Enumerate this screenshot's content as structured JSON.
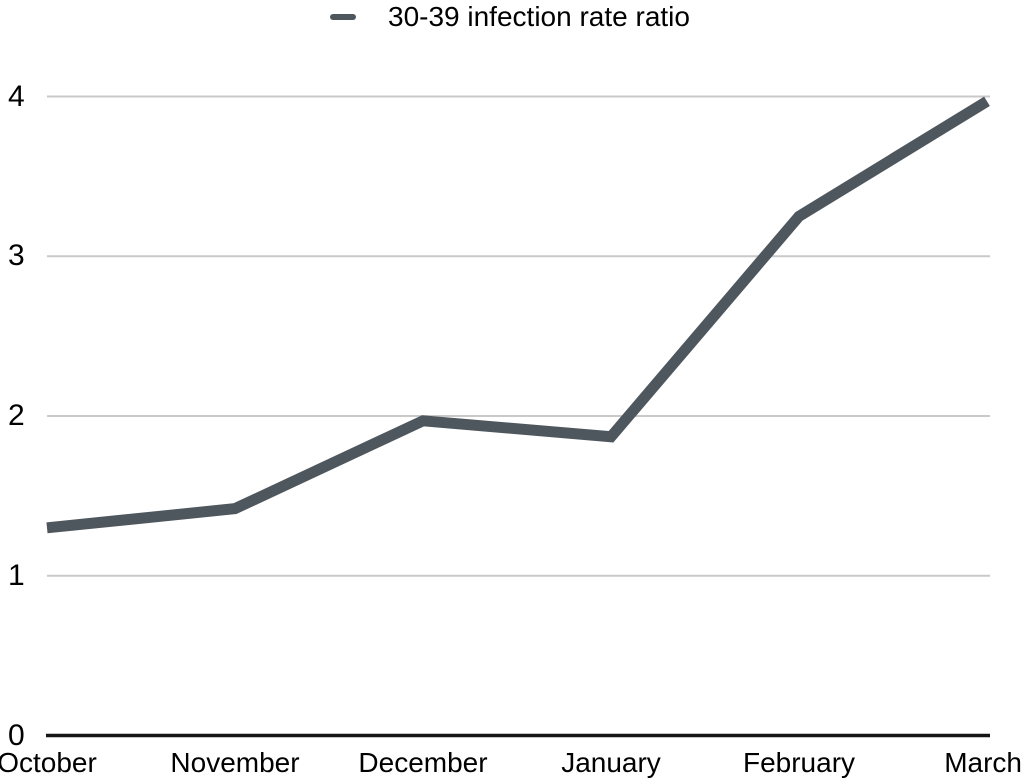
{
  "legend": {
    "label": "30-39 infection rate ratio"
  },
  "colors": {
    "line": "#4f575e",
    "gridline": "#c9c9c9",
    "axis": "#161616",
    "text": "#000000",
    "background": "#ffffff"
  },
  "chart_data": {
    "type": "line",
    "title": "",
    "xlabel": "",
    "ylabel": "",
    "categories": [
      "October",
      "November",
      "December",
      "January",
      "February",
      "March"
    ],
    "series": [
      {
        "name": "30-39 infection rate ratio",
        "values": [
          1.3,
          1.42,
          1.97,
          1.87,
          3.25,
          3.97
        ]
      }
    ],
    "ylim": [
      0,
      4
    ],
    "yticks": [
      0,
      1,
      2,
      3,
      4
    ],
    "grid": true,
    "legend_position": "top-center"
  }
}
